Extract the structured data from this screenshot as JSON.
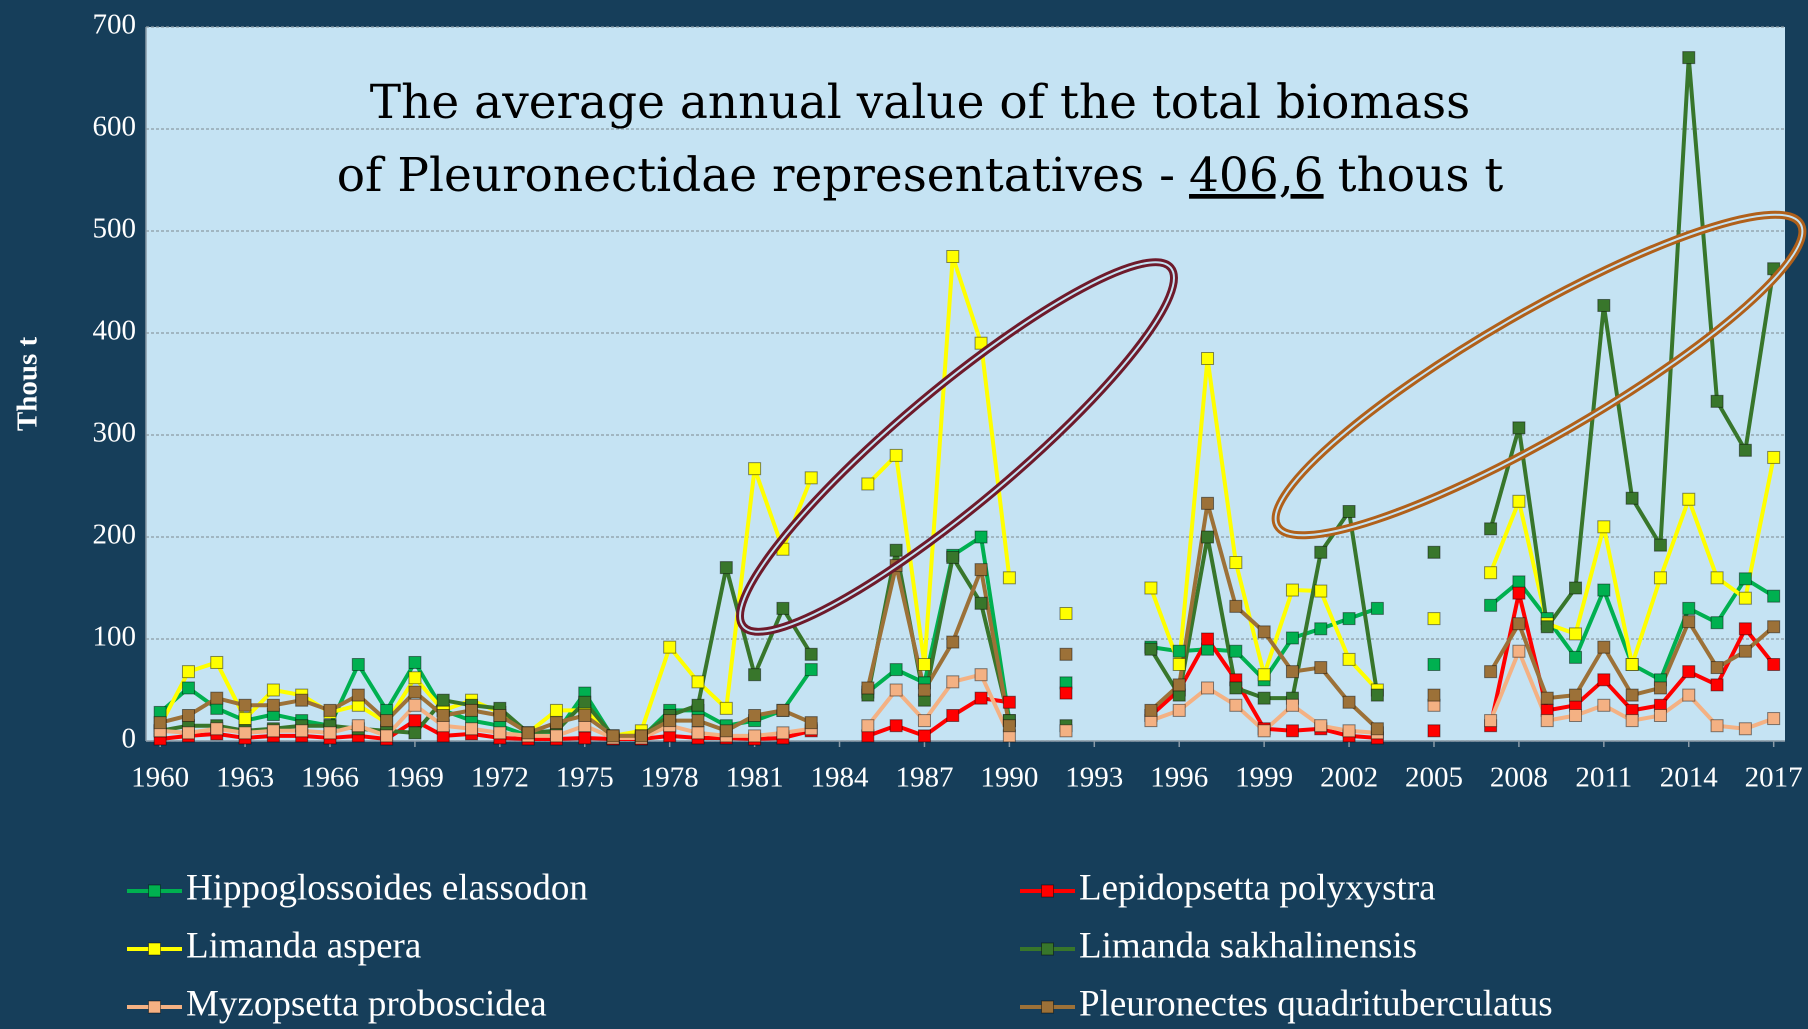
{
  "chart_data": {
    "type": "line",
    "title": {
      "line1": "The average annual value of the total biomass",
      "line2": "of Pleuronectidae representatives -",
      "highlight": "406,6",
      "unit": "thous t"
    },
    "y_label": "Thous t",
    "x": [
      1960,
      1961,
      1962,
      1963,
      1964,
      1965,
      1966,
      1967,
      1968,
      1969,
      1970,
      1971,
      1972,
      1973,
      1974,
      1975,
      1976,
      1977,
      1978,
      1979,
      1980,
      1981,
      1982,
      1983,
      1984,
      1985,
      1986,
      1987,
      1988,
      1989,
      1990,
      1991,
      1992,
      1993,
      1994,
      1995,
      1996,
      1997,
      1998,
      1999,
      2000,
      2001,
      2002,
      2003,
      2004,
      2005,
      2006,
      2007,
      2008,
      2009,
      2010,
      2011,
      2012,
      2013,
      2014,
      2015,
      2016,
      2017
    ],
    "xlim": [
      1959.5,
      2017.4
    ],
    "xticks": [
      1960,
      1963,
      1966,
      1969,
      1972,
      1975,
      1978,
      1981,
      1984,
      1987,
      1990,
      1993,
      1996,
      1999,
      2002,
      2005,
      2008,
      2011,
      2014,
      2017
    ],
    "ylim": [
      0,
      700
    ],
    "yticks": [
      0,
      100,
      200,
      300,
      400,
      500,
      600,
      700
    ],
    "grid": true,
    "legend": "bottom",
    "series": [
      {
        "name": "Hippoglossoides elassodon",
        "color": "#00b050",
        "values": [
          28,
          52,
          32,
          20,
          26,
          20,
          15,
          75,
          30,
          77,
          30,
          20,
          15,
          5,
          8,
          47,
          3,
          3,
          30,
          30,
          15,
          20,
          30,
          70,
          null,
          48,
          70,
          57,
          182,
          200,
          20,
          null,
          57,
          null,
          null,
          92,
          88,
          90,
          88,
          60,
          101,
          110,
          120,
          130,
          null,
          75,
          null,
          133,
          156,
          120,
          82,
          148,
          75,
          60,
          130,
          116,
          159,
          142
        ]
      },
      {
        "name": "Lepidopsetta polyxystra",
        "color": "#ff0000",
        "values": [
          2,
          5,
          7,
          3,
          5,
          5,
          3,
          5,
          2,
          20,
          5,
          7,
          3,
          2,
          2,
          3,
          2,
          2,
          5,
          3,
          3,
          2,
          3,
          10,
          null,
          5,
          15,
          5,
          25,
          42,
          38,
          null,
          47,
          null,
          null,
          25,
          50,
          100,
          60,
          12,
          10,
          12,
          5,
          3,
          null,
          10,
          null,
          15,
          145,
          30,
          35,
          60,
          30,
          35,
          68,
          55,
          110,
          75
        ]
      },
      {
        "name": "Limanda aspera",
        "color": "#ffff00",
        "values": [
          15,
          68,
          77,
          22,
          50,
          45,
          28,
          35,
          18,
          62,
          30,
          40,
          28,
          8,
          30,
          30,
          5,
          10,
          92,
          58,
          32,
          267,
          188,
          258,
          null,
          252,
          280,
          75,
          475,
          390,
          160,
          null,
          125,
          null,
          null,
          150,
          75,
          375,
          175,
          65,
          148,
          147,
          80,
          50,
          null,
          120,
          null,
          165,
          235,
          115,
          105,
          210,
          75,
          160,
          237,
          160,
          140,
          278
        ]
      },
      {
        "name": "Limanda sakhalinensis",
        "color": "#38762b",
        "values": [
          10,
          15,
          15,
          10,
          12,
          15,
          15,
          12,
          10,
          8,
          40,
          35,
          32,
          8,
          10,
          38,
          5,
          5,
          25,
          35,
          170,
          65,
          130,
          85,
          null,
          45,
          187,
          40,
          180,
          135,
          20,
          null,
          15,
          null,
          null,
          90,
          45,
          200,
          52,
          42,
          42,
          185,
          225,
          45,
          null,
          185,
          null,
          208,
          307,
          112,
          150,
          427,
          238,
          192,
          670,
          333,
          285,
          463
        ]
      },
      {
        "name": "Myzopsetta proboscidea",
        "color": "#f4b183",
        "values": [
          10,
          8,
          12,
          8,
          10,
          10,
          8,
          15,
          5,
          35,
          15,
          12,
          8,
          5,
          5,
          15,
          3,
          3,
          15,
          8,
          5,
          5,
          8,
          12,
          null,
          15,
          50,
          20,
          58,
          65,
          5,
          null,
          10,
          null,
          null,
          20,
          30,
          52,
          35,
          10,
          35,
          15,
          10,
          8,
          null,
          35,
          null,
          20,
          88,
          20,
          25,
          35,
          20,
          25,
          45,
          15,
          12,
          22
        ]
      },
      {
        "name": "Pleuronectes quadrituberculatus",
        "color": "#9c7138",
        "values": [
          18,
          25,
          42,
          35,
          35,
          40,
          30,
          45,
          20,
          48,
          25,
          30,
          25,
          8,
          18,
          25,
          5,
          5,
          20,
          20,
          10,
          25,
          30,
          18,
          null,
          52,
          172,
          50,
          97,
          168,
          15,
          null,
          85,
          null,
          null,
          30,
          55,
          233,
          132,
          107,
          68,
          72,
          38,
          12,
          null,
          45,
          null,
          68,
          115,
          42,
          45,
          92,
          45,
          52,
          117,
          72,
          88,
          112
        ]
      }
    ]
  }
}
